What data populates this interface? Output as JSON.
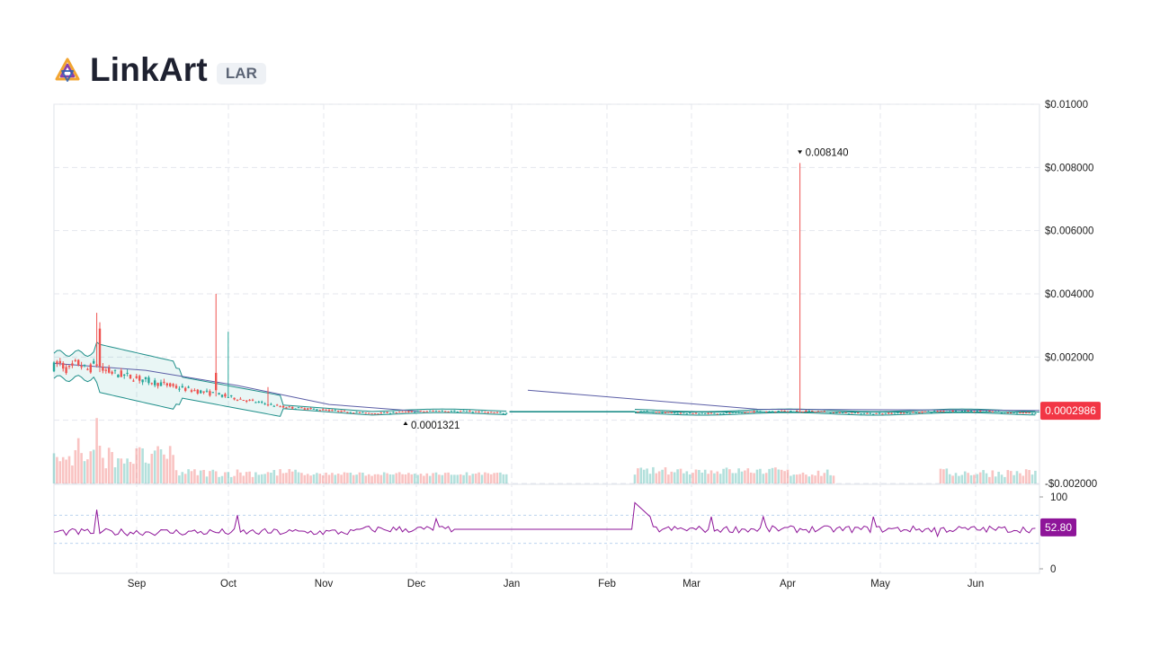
{
  "header": {
    "title": "LinkArt",
    "ticker": "LAR",
    "logo_icon": "linkart-triangle-logo-icon"
  },
  "colors": {
    "up": "#26a69a",
    "down": "#ef5350",
    "band": "#1f8f8a",
    "ma": "#5b5ea6",
    "rsi": "#8e1599",
    "price_tag": "#f23645",
    "grid": "#e4e7ee"
  },
  "chart_data": [
    {
      "type": "candlestick",
      "title": "",
      "x_labels": [
        "Sep",
        "Oct",
        "Nov",
        "Dec",
        "Jan",
        "Feb",
        "Mar",
        "Apr",
        "May",
        "Jun"
      ],
      "y_tick_labels": [
        "$0.01000",
        "$0.008000",
        "$0.006000",
        "$0.004000",
        "$0.002000",
        "-$0.002000"
      ],
      "ylim": [
        -0.002,
        0.01
      ],
      "y_ticks": [
        0.01,
        0.008,
        0.006,
        0.004,
        0.002,
        -0.002
      ],
      "last_price": 0.0002986,
      "last_price_label": "0.0002986",
      "high_marker": {
        "label": "0.008140",
        "value": 0.00814,
        "date": "Apr 13"
      },
      "low_marker": {
        "label": "0.0001321",
        "value": 0.0001321,
        "date": "Nov 25"
      },
      "notable_spikes": [
        {
          "date": "Aug 26",
          "high": 0.0034
        },
        {
          "date": "Oct 4",
          "high": 0.004
        },
        {
          "date": "Oct 8",
          "high": 0.0028
        },
        {
          "date": "Apr 13",
          "high": 0.00814
        }
      ],
      "overlays": [
        "bollinger-bands",
        "moving-average",
        "volume"
      ],
      "grid": true
    },
    {
      "type": "line",
      "series_type": "rsi",
      "ylim": [
        0,
        100
      ],
      "y_tick_labels": [
        "100",
        "0"
      ],
      "y_ticks": [
        100,
        0
      ],
      "guide_levels": [
        70,
        30
      ],
      "last_value": 52.8,
      "last_value_label": "52.80",
      "grid": true
    }
  ]
}
